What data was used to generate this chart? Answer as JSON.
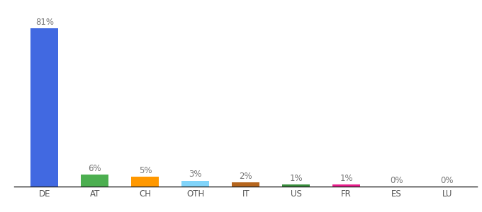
{
  "categories": [
    "DE",
    "AT",
    "CH",
    "OTH",
    "IT",
    "US",
    "FR",
    "ES",
    "LU"
  ],
  "values": [
    81,
    6,
    5,
    3,
    2,
    1,
    1,
    0,
    0
  ],
  "labels": [
    "81%",
    "6%",
    "5%",
    "3%",
    "2%",
    "1%",
    "1%",
    "0%",
    "0%"
  ],
  "colors": [
    "#4169e1",
    "#4caf50",
    "#ff9800",
    "#81d4fa",
    "#b5651d",
    "#388e3c",
    "#e91e8c",
    "#4169e1",
    "#4169e1"
  ],
  "background_color": "#ffffff",
  "label_fontsize": 8.5,
  "tick_fontsize": 8.5,
  "label_color": "#777777",
  "tick_color": "#555555",
  "ylim": [
    0,
    90
  ],
  "bar_width": 0.55
}
